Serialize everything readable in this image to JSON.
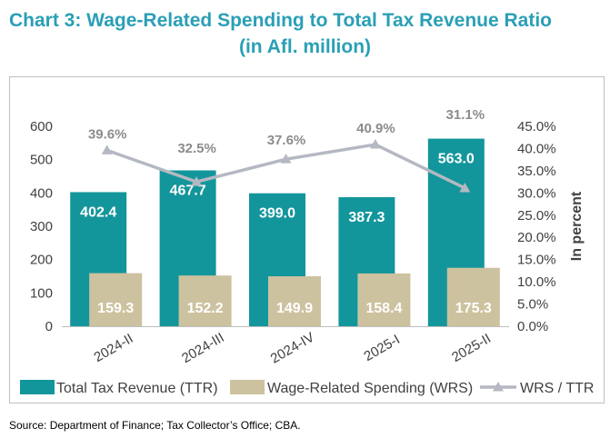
{
  "title_line1": "Chart 3: Wage-Related Spending to Total Tax Revenue Ratio",
  "title_line2": "(in Afl. million)",
  "source": "Source: Department of Finance; Tax Collector’s Office; CBA.",
  "colors": {
    "title": "#2a9fb6",
    "ttr": "#13969b",
    "wrs": "#cdc29f",
    "ratio": "#b4b8c2"
  },
  "chart_data": {
    "type": "bar",
    "categories": [
      "2024-II",
      "2024-III",
      "2024-IV",
      "2025-I",
      "2025-II"
    ],
    "series": [
      {
        "name": "Total Tax Revenue (TTR)",
        "values": [
          402.4,
          467.7,
          399.0,
          387.3,
          563.0
        ],
        "labels": [
          "402.4",
          "467.7",
          "399.0",
          "387.3",
          "563.0"
        ]
      },
      {
        "name": "Wage-Related Spending (WRS)",
        "values": [
          159.3,
          152.2,
          149.9,
          158.4,
          175.3
        ],
        "labels": [
          "159.3",
          "152.2",
          "149.9",
          "158.4",
          "175.3"
        ]
      },
      {
        "name": "WRS / TTR",
        "type": "line",
        "axis": "secondary",
        "values": [
          39.6,
          32.5,
          37.6,
          40.9,
          31.1
        ],
        "labels": [
          "39.6%",
          "32.5%",
          "37.6%",
          "40.9%",
          "31.1%"
        ]
      }
    ],
    "ylim": [
      0,
      600
    ],
    "yticks": [
      "0",
      "100",
      "200",
      "300",
      "400",
      "500",
      "600"
    ],
    "y2lim": [
      0,
      45
    ],
    "y2ticks": [
      "0.0%",
      "5.0%",
      "10.0%",
      "15.0%",
      "20.0%",
      "25.0%",
      "30.0%",
      "35.0%",
      "40.0%",
      "45.0%"
    ],
    "y2label": "In percent",
    "legend_position": "bottom"
  }
}
